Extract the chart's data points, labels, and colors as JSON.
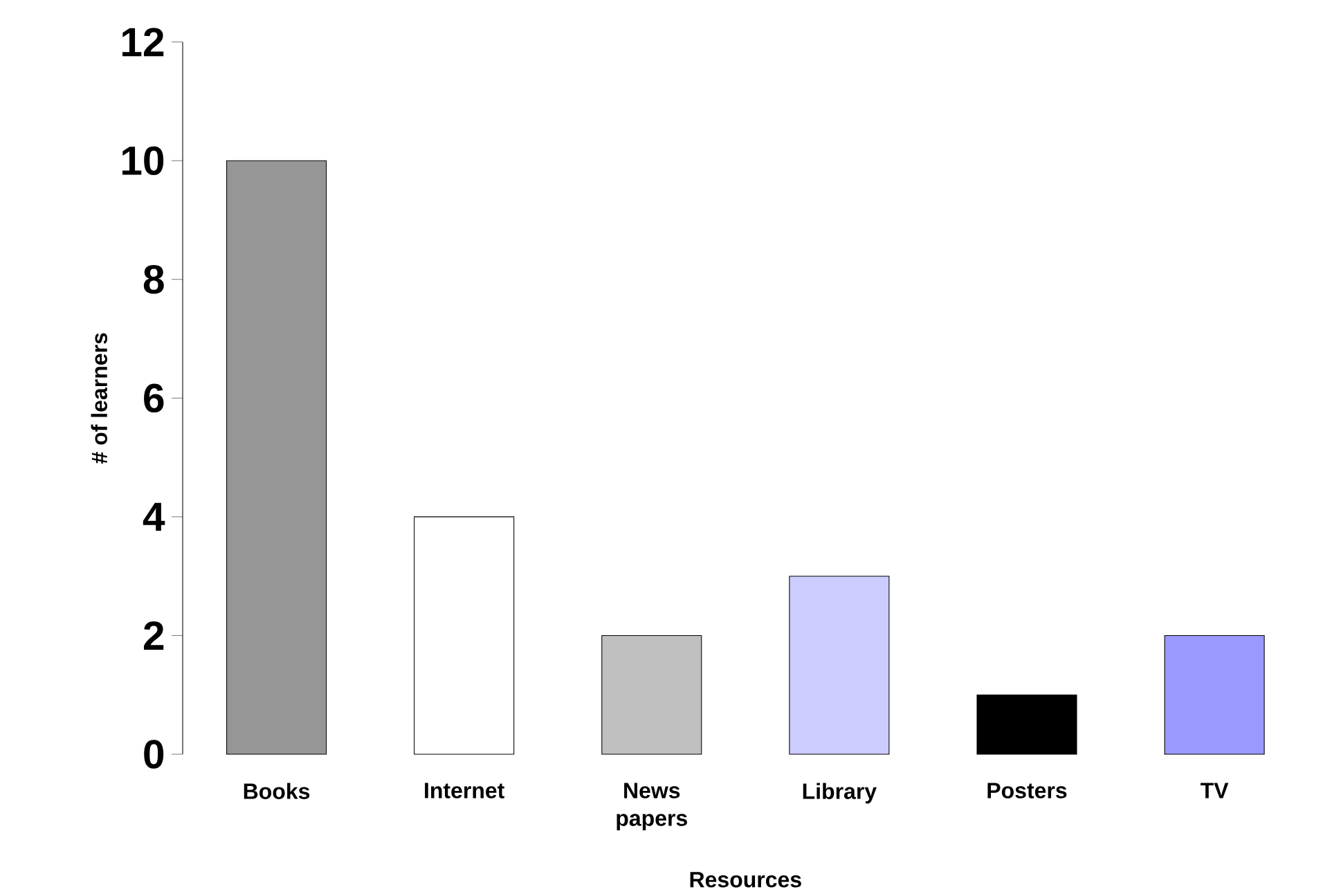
{
  "chart_data": {
    "type": "bar",
    "xlabel": "Resources",
    "ylabel": "# of learners",
    "categories": [
      "Books",
      "Internet",
      "News papers",
      "Library",
      "Posters",
      "TV"
    ],
    "values": [
      10,
      4,
      2,
      3,
      1,
      2
    ],
    "colors": [
      "#969696",
      "#ffffff",
      "#c0c0c0",
      "#ccccff",
      "#000000",
      "#9999ff"
    ],
    "ylim": [
      0,
      12
    ],
    "yticks": [
      0,
      2,
      4,
      6,
      8,
      10,
      12
    ]
  }
}
